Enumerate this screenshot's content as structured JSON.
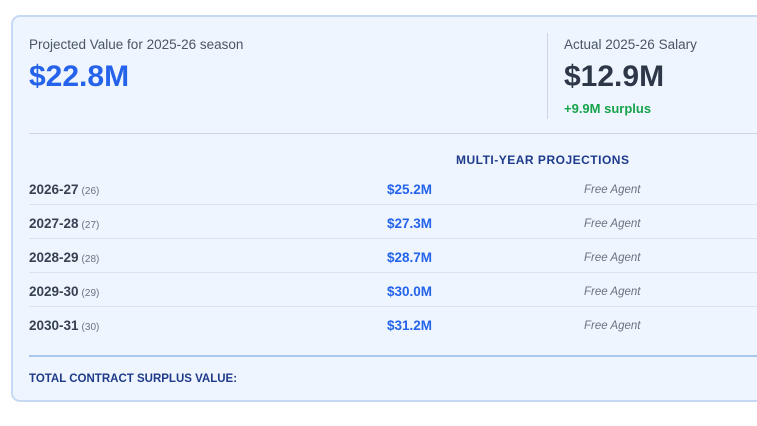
{
  "projected": {
    "label": "Projected Value for 2025-26 season",
    "value": "$22.8M"
  },
  "salary": {
    "label": "Actual 2025-26 Salary",
    "value": "$12.9M",
    "surplus": "+9.9M surplus"
  },
  "projections": {
    "title": "MULTI-YEAR PROJECTIONS",
    "rows": [
      {
        "season": "2026-27",
        "age": "(26)",
        "amount": "$25.2M",
        "status": "Free Agent"
      },
      {
        "season": "2027-28",
        "age": "(27)",
        "amount": "$27.3M",
        "status": "Free Agent"
      },
      {
        "season": "2028-29",
        "age": "(28)",
        "amount": "$28.7M",
        "status": "Free Agent"
      },
      {
        "season": "2029-30",
        "age": "(29)",
        "amount": "$30.0M",
        "status": "Free Agent"
      },
      {
        "season": "2030-31",
        "age": "(30)",
        "amount": "$31.2M",
        "status": "Free Agent"
      }
    ]
  },
  "total": {
    "label": "TOTAL CONTRACT SURPLUS VALUE:"
  }
}
